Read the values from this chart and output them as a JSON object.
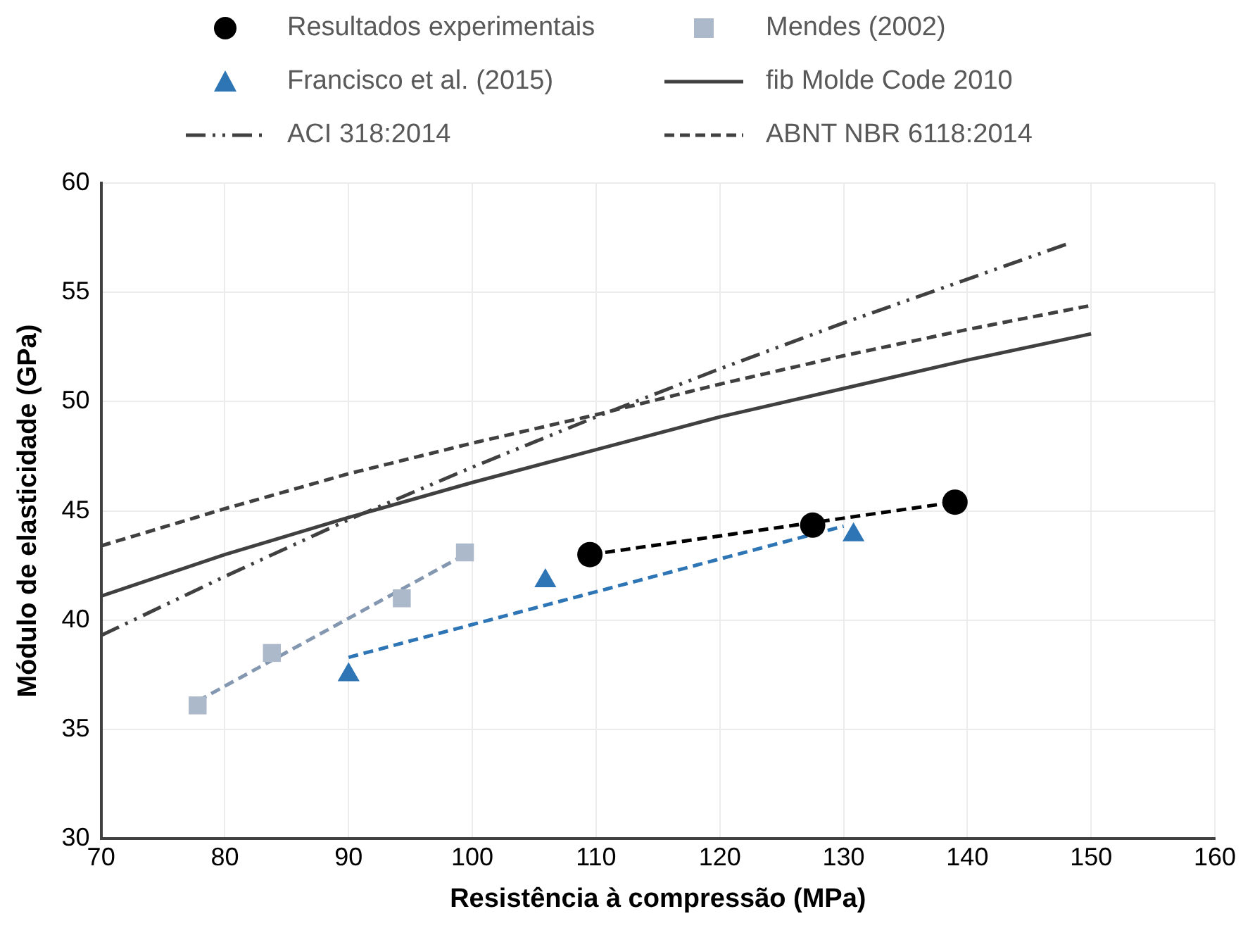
{
  "chart_data": {
    "type": "scatter",
    "xlabel": "Resistência à compressão (MPa)",
    "ylabel": "Módulo de elasticidade (GPa)",
    "xlim": [
      70,
      160
    ],
    "xticks": [
      70,
      80,
      90,
      100,
      110,
      120,
      130,
      140,
      150,
      160
    ],
    "ylim": [
      30,
      60
    ],
    "yticks": [
      30,
      35,
      40,
      45,
      50,
      55,
      60
    ],
    "grid": true,
    "legend": "top",
    "series": [
      {
        "name": "Resultados experimentais",
        "type": "scatter",
        "marker": "circle",
        "color": "#000000",
        "x": [
          109.5,
          127.5,
          139.0
        ],
        "values": [
          43.0,
          44.35,
          45.4
        ]
      },
      {
        "name": "Mendes (2002)",
        "type": "scatter",
        "marker": "square",
        "color": "#acb9ca",
        "x": [
          77.8,
          83.8,
          94.3,
          99.4
        ],
        "values": [
          36.1,
          38.5,
          41.0,
          43.1
        ]
      },
      {
        "name": "Francisco et al. (2015)",
        "type": "scatter",
        "marker": "triangle",
        "color": "#2e75b6",
        "x": [
          90.0,
          105.9,
          130.8
        ],
        "values": [
          37.5,
          41.8,
          43.9
        ]
      },
      {
        "name": "fib Molde Code 2010",
        "type": "line",
        "line_style": "solid",
        "marker": "none",
        "color": "#404040",
        "x": [
          70,
          80,
          90,
          100,
          110,
          120,
          130,
          140,
          150
        ],
        "values": [
          41.1,
          43.0,
          44.7,
          46.3,
          47.8,
          49.3,
          50.6,
          51.9,
          53.1
        ]
      },
      {
        "name": "ACI 318:2014",
        "type": "line",
        "line_style": "dashdotdot",
        "marker": "none",
        "color": "#404040",
        "x": [
          70,
          80,
          90,
          100,
          110,
          120,
          130,
          140,
          148
        ],
        "values": [
          39.3,
          42.0,
          44.6,
          47.0,
          49.3,
          51.5,
          53.6,
          55.6,
          57.2
        ]
      },
      {
        "name": "ABNT NBR 6118:2014",
        "type": "line",
        "line_style": "dashed",
        "marker": "none",
        "color": "#404040",
        "x": [
          70,
          80,
          90,
          100,
          110,
          120,
          130,
          140,
          150
        ],
        "values": [
          43.4,
          45.1,
          46.7,
          48.1,
          49.4,
          50.8,
          52.1,
          53.3,
          54.4
        ]
      },
      {
        "type": "line",
        "line_style": "dashed",
        "marker": "none",
        "color": "#000000",
        "x": [
          109.5,
          139.0
        ],
        "values": [
          43.0,
          45.4
        ]
      },
      {
        "type": "line",
        "line_style": "dashed",
        "marker": "none",
        "color": "#8497b0",
        "x": [
          77.8,
          99.4
        ],
        "values": [
          36.3,
          43.0
        ]
      },
      {
        "type": "line",
        "line_style": "dashed",
        "marker": "none",
        "color": "#2e75b6",
        "x": [
          90.0,
          130.0
        ],
        "values": [
          38.3,
          44.3
        ]
      }
    ]
  }
}
